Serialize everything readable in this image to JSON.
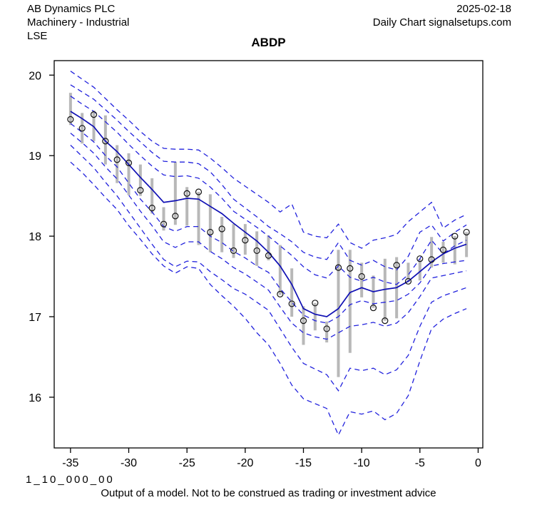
{
  "header": {
    "company": "AB Dynamics PLC",
    "sector": "Machinery - Industrial",
    "exchange": "LSE",
    "date": "2025-02-18",
    "source": "Daily Chart signalsetups.com"
  },
  "title": "ABDP",
  "footer": {
    "code": "1_10_000_00",
    "disclaimer": "Output of a model. Not to be construed as trading or investment advice"
  },
  "colors": {
    "dashed_line": "#2222dd",
    "solid_line": "#0f0fb4",
    "bar": "#b8b8b8",
    "marker": "#111111",
    "axis": "#000000",
    "background": "#ffffff"
  },
  "chart_data": {
    "type": "line",
    "title": "ABDP",
    "xlabel": "",
    "ylabel": "",
    "grid": false,
    "legend_position": "none",
    "xlim": [
      -36.4,
      0.4
    ],
    "ylim": [
      15.37,
      20.18
    ],
    "x_ticks": [
      -35,
      -30,
      -25,
      -20,
      -15,
      -10,
      -5,
      0
    ],
    "x_tick_labels": [
      "-35",
      "-30",
      "-25",
      "-20",
      "-15",
      "-10",
      "-5",
      "0"
    ],
    "y_ticks": [
      16,
      17,
      18,
      19,
      20
    ],
    "y_tick_labels": [
      "16",
      "17",
      "18",
      "19",
      "20"
    ],
    "days": [
      -35,
      -34,
      -33,
      -32,
      -31,
      -30,
      -29,
      -28,
      -27,
      -26,
      -25,
      -24,
      -23,
      -22,
      -21,
      -20,
      -19,
      -18,
      -17,
      -16,
      -15,
      -14,
      -13,
      -12,
      -11,
      -10,
      -9,
      -8,
      -7,
      -6,
      -5,
      -4,
      -3,
      -2,
      -1
    ],
    "observations": {
      "close": [
        19.45,
        19.34,
        19.51,
        19.18,
        18.95,
        18.91,
        18.57,
        18.35,
        18.15,
        18.25,
        18.53,
        18.55,
        18.05,
        18.09,
        17.82,
        17.95,
        17.82,
        17.76,
        17.28,
        17.16,
        16.95,
        17.17,
        16.85,
        17.61,
        17.6,
        17.5,
        17.11,
        16.95,
        17.64,
        17.44,
        17.72,
        17.71,
        17.83,
        18.0,
        18.05
      ],
      "high": [
        19.78,
        19.53,
        19.56,
        19.5,
        19.13,
        19.03,
        18.89,
        18.72,
        18.36,
        18.92,
        18.61,
        18.55,
        18.52,
        18.24,
        18.15,
        18.15,
        18.06,
        18.01,
        17.89,
        17.6,
        17.13,
        17.17,
        16.94,
        17.83,
        17.83,
        17.67,
        17.51,
        17.72,
        17.74,
        17.67,
        17.72,
        17.99,
        17.93,
        18.0,
        18.05
      ],
      "low": [
        19.38,
        19.15,
        19.18,
        18.89,
        18.66,
        18.51,
        18.5,
        18.28,
        18.07,
        18.14,
        18.13,
        17.89,
        17.8,
        17.8,
        17.73,
        17.77,
        17.63,
        17.7,
        17.27,
        17.0,
        16.65,
        16.83,
        16.68,
        16.25,
        16.55,
        17.24,
        17.11,
        16.95,
        16.98,
        17.43,
        17.45,
        17.61,
        17.67,
        17.65,
        17.74
      ]
    },
    "model_line": {
      "name": "model-center",
      "values": [
        19.55,
        19.46,
        19.36,
        19.18,
        19.05,
        18.89,
        18.73,
        18.58,
        18.42,
        18.44,
        18.47,
        18.46,
        18.37,
        18.28,
        18.16,
        18.05,
        17.94,
        17.8,
        17.63,
        17.4,
        17.1,
        17.03,
        17.0,
        17.1,
        17.3,
        17.36,
        17.31,
        17.34,
        17.36,
        17.44,
        17.56,
        17.68,
        17.78,
        17.85,
        17.9
      ]
    },
    "quantile_lines": [
      {
        "name": "upper-1",
        "values": [
          20.05,
          19.95,
          19.85,
          19.71,
          19.57,
          19.44,
          19.3,
          19.18,
          19.09,
          19.08,
          19.08,
          19.07,
          18.97,
          18.85,
          18.72,
          18.62,
          18.52,
          18.42,
          18.3,
          18.4,
          18.05,
          18.0,
          17.98,
          18.15,
          17.92,
          17.85,
          17.95,
          17.98,
          18.02,
          18.18,
          18.3,
          18.42,
          18.1,
          18.2,
          18.27
        ]
      },
      {
        "name": "upper-2",
        "values": [
          19.88,
          19.79,
          19.7,
          19.57,
          19.44,
          19.3,
          19.17,
          19.04,
          18.93,
          18.92,
          18.92,
          18.9,
          18.8,
          18.64,
          18.46,
          18.35,
          18.24,
          18.12,
          18.03,
          17.93,
          17.8,
          17.74,
          17.71,
          17.92,
          17.7,
          17.64,
          17.7,
          17.62,
          17.58,
          17.75,
          18.05,
          18.14,
          17.94,
          18.05,
          18.14
        ]
      },
      {
        "name": "upper-3",
        "values": [
          19.74,
          19.64,
          19.55,
          19.42,
          19.29,
          19.14,
          19.0,
          18.87,
          18.76,
          18.74,
          18.75,
          18.72,
          18.61,
          18.47,
          18.31,
          18.21,
          18.11,
          18.0,
          17.88,
          17.76,
          17.62,
          17.52,
          17.48,
          17.63,
          17.49,
          17.44,
          17.49,
          17.43,
          17.4,
          17.52,
          17.72,
          17.95,
          17.78,
          17.88,
          17.95
        ]
      },
      {
        "name": "lower-1",
        "values": [
          19.4,
          19.29,
          19.17,
          19.0,
          18.86,
          18.66,
          18.46,
          18.3,
          18.12,
          18.06,
          18.12,
          18.12,
          18.0,
          17.92,
          17.81,
          17.73,
          17.63,
          17.55,
          17.35,
          17.18,
          17.02,
          16.95,
          16.92,
          17.0,
          17.15,
          17.2,
          17.16,
          17.18,
          17.2,
          17.28,
          17.42,
          17.63,
          17.66,
          17.68,
          17.7
        ]
      },
      {
        "name": "lower-2",
        "values": [
          19.28,
          19.16,
          19.03,
          18.86,
          18.71,
          18.51,
          18.31,
          18.13,
          17.93,
          17.86,
          17.93,
          17.93,
          17.81,
          17.72,
          17.61,
          17.53,
          17.43,
          17.33,
          17.12,
          16.92,
          16.8,
          16.75,
          16.72,
          16.8,
          16.88,
          16.9,
          16.93,
          16.88,
          16.92,
          17.05,
          17.25,
          17.48,
          17.51,
          17.54,
          17.57
        ]
      },
      {
        "name": "lower-3",
        "values": [
          19.13,
          18.99,
          18.85,
          18.67,
          18.5,
          18.3,
          18.1,
          17.9,
          17.71,
          17.62,
          17.69,
          17.68,
          17.56,
          17.46,
          17.35,
          17.28,
          17.18,
          17.08,
          16.85,
          16.62,
          16.42,
          16.35,
          16.28,
          16.08,
          16.36,
          16.33,
          16.36,
          16.28,
          16.34,
          16.52,
          16.88,
          17.18,
          17.26,
          17.31,
          17.36
        ]
      },
      {
        "name": "lower-4",
        "values": [
          18.92,
          18.79,
          18.64,
          18.48,
          18.33,
          18.13,
          17.96,
          17.78,
          17.63,
          17.54,
          17.62,
          17.6,
          17.4,
          17.26,
          17.13,
          16.98,
          16.8,
          16.65,
          16.42,
          16.15,
          15.98,
          15.92,
          15.86,
          15.53,
          15.82,
          15.79,
          15.83,
          15.72,
          15.8,
          16.02,
          16.45,
          16.85,
          16.97,
          17.04,
          17.1
        ]
      }
    ]
  }
}
